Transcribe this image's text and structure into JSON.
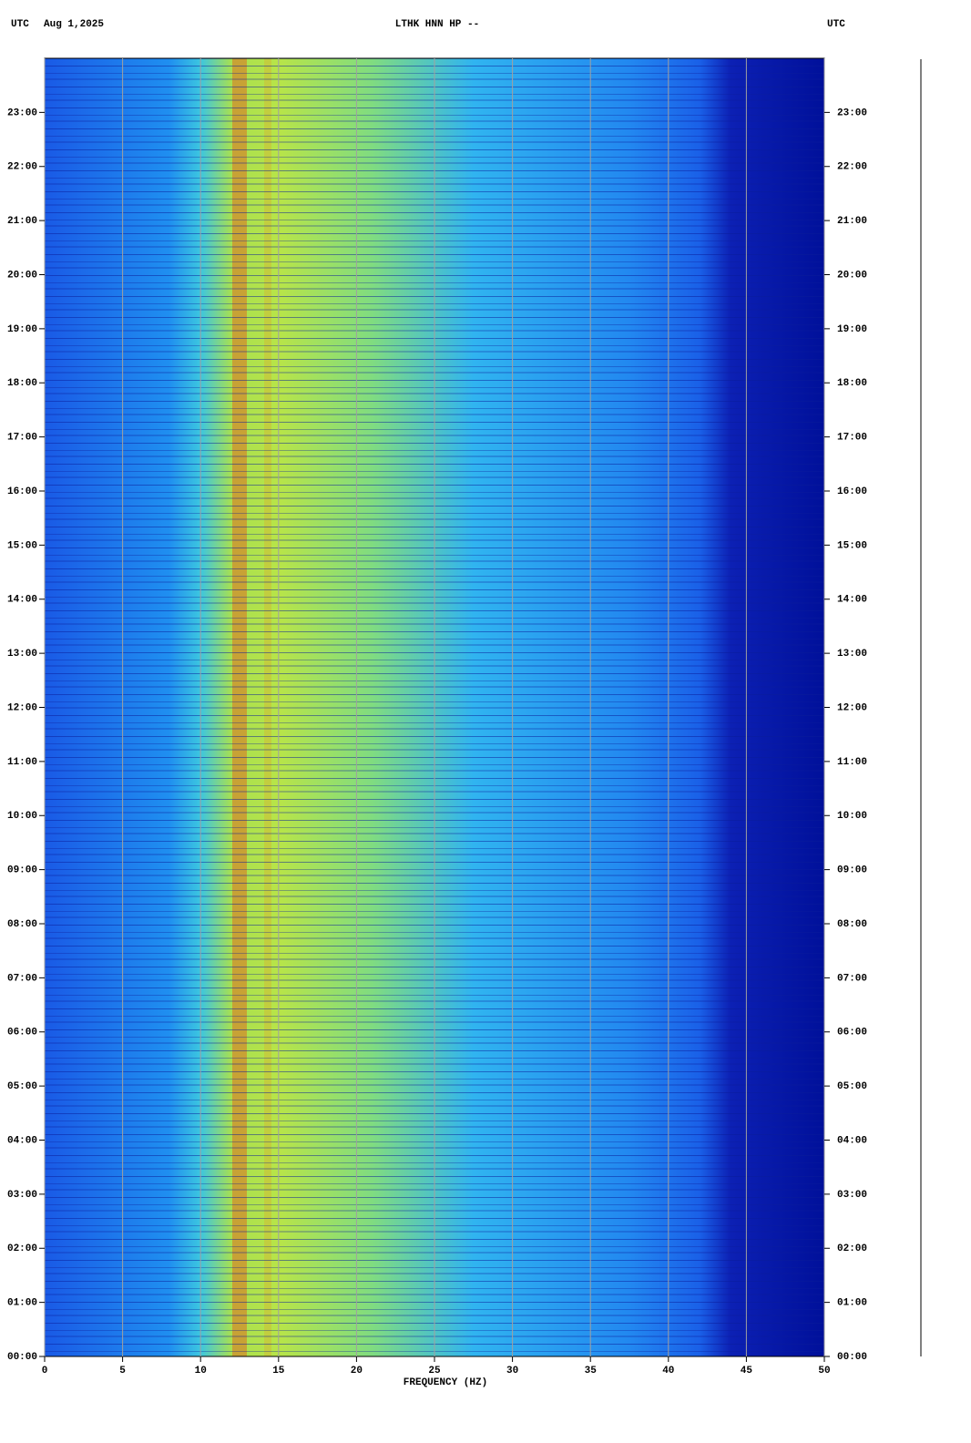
{
  "chart_data": {
    "type": "spectrogram",
    "title": "LTHK HNN HP --",
    "date": "Aug 1,2025",
    "left_label": "UTC",
    "right_label": "UTC",
    "x_label": "FREQUENCY (HZ)",
    "xlim": [
      0,
      50
    ],
    "xticks": [
      0,
      5,
      10,
      15,
      20,
      25,
      30,
      35,
      40,
      45,
      50
    ],
    "ylim": [
      0,
      24
    ],
    "yticks": [
      {
        "value": 0,
        "label": "00:00"
      },
      {
        "value": 1,
        "label": "01:00"
      },
      {
        "value": 2,
        "label": "02:00"
      },
      {
        "value": 3,
        "label": "03:00"
      },
      {
        "value": 4,
        "label": "04:00"
      },
      {
        "value": 5,
        "label": "05:00"
      },
      {
        "value": 6,
        "label": "06:00"
      },
      {
        "value": 7,
        "label": "07:00"
      },
      {
        "value": 8,
        "label": "08:00"
      },
      {
        "value": 9,
        "label": "09:00"
      },
      {
        "value": 10,
        "label": "10:00"
      },
      {
        "value": 11,
        "label": "11:00"
      },
      {
        "value": 12,
        "label": "12:00"
      },
      {
        "value": 13,
        "label": "13:00"
      },
      {
        "value": 14,
        "label": "14:00"
      },
      {
        "value": 15,
        "label": "15:00"
      },
      {
        "value": 16,
        "label": "16:00"
      },
      {
        "value": 17,
        "label": "17:00"
      },
      {
        "value": 18,
        "label": "18:00"
      },
      {
        "value": 19,
        "label": "19:00"
      },
      {
        "value": 20,
        "label": "20:00"
      },
      {
        "value": 21,
        "label": "21:00"
      },
      {
        "value": 22,
        "label": "22:00"
      },
      {
        "value": 23,
        "label": "23:00"
      }
    ],
    "grid": true
  }
}
